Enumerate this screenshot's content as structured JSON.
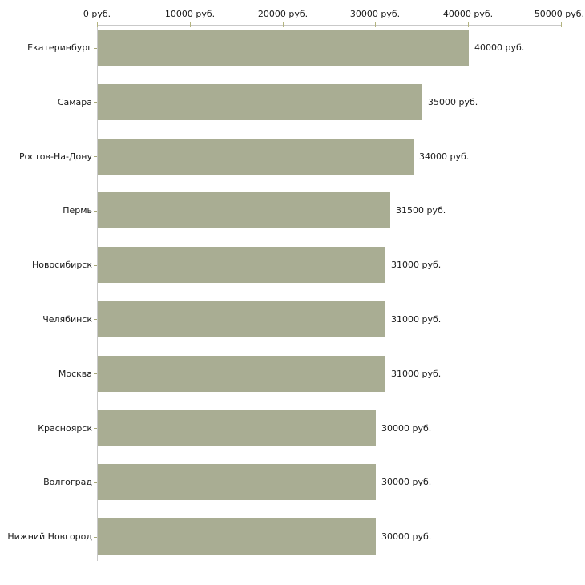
{
  "chart_data": {
    "type": "bar",
    "orientation": "horizontal",
    "title": "",
    "xlabel": "",
    "ylabel": "",
    "categories": [
      "Екатеринбург",
      "Самара",
      "Ростов-На-Дону",
      "Пермь",
      "Новосибирск",
      "Челябинск",
      "Москва",
      "Красноярск",
      "Волгоград",
      "Нижний Новгород"
    ],
    "values": [
      40000,
      35000,
      34000,
      31500,
      31000,
      31000,
      31000,
      30000,
      30000,
      30000
    ],
    "value_labels": [
      "40000 руб.",
      "35000 руб.",
      "34000 руб.",
      "31500 руб.",
      "31000 руб.",
      "31000 руб.",
      "31000 руб.",
      "30000 руб.",
      "30000 руб.",
      "30000 руб."
    ],
    "x_axis": {
      "position": "top",
      "min": 0,
      "max": 50000,
      "tick_values": [
        0,
        10000,
        20000,
        30000,
        40000,
        50000
      ],
      "tick_labels": [
        "0 руб.",
        "10000 руб.",
        "20000 руб.",
        "30000 руб.",
        "40000 руб.",
        "50000 руб."
      ]
    },
    "legend": null,
    "grid": false,
    "colors": {
      "bar_fill": "#a9ad93",
      "axis_line": "#c9c9c9",
      "axis_tick": "#b3b37f",
      "category_tick": "#a6a679",
      "text": "#1a1a1a",
      "background": "#ffffff"
    }
  }
}
